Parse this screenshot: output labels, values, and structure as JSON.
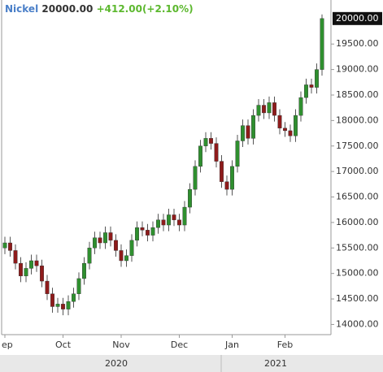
{
  "chart_data": {
    "type": "candlestick",
    "symbol": "Nickel",
    "last": "20000.00",
    "change": "+412.00(+2.10%)",
    "last_price_tag": {
      "value": 20000,
      "label": "20000.00"
    },
    "up_color": "#2f8f2f",
    "down_color": "#8e1b1b",
    "wick_color": "#555555",
    "ylim": [
      13800,
      20300
    ],
    "yticks": [
      {
        "value": 14000,
        "label": "14000.00"
      },
      {
        "value": 14500,
        "label": "14500.00"
      },
      {
        "value": 15000,
        "label": "15000.00"
      },
      {
        "value": 15500,
        "label": "15500.00"
      },
      {
        "value": 16000,
        "label": "16000.00"
      },
      {
        "value": 16500,
        "label": "16500.00"
      },
      {
        "value": 17000,
        "label": "17000.00"
      },
      {
        "value": 17500,
        "label": "17500.00"
      },
      {
        "value": 18000,
        "label": "18000.00"
      },
      {
        "value": 18500,
        "label": "18500.00"
      },
      {
        "value": 19000,
        "label": "19000.00"
      },
      {
        "value": 19500,
        "label": "19500.00"
      }
    ],
    "categories": [
      "ep",
      null,
      null,
      null,
      null,
      null,
      null,
      null,
      null,
      null,
      null,
      "Oct",
      null,
      null,
      null,
      null,
      null,
      null,
      null,
      null,
      null,
      null,
      "Nov",
      null,
      null,
      null,
      null,
      null,
      null,
      null,
      null,
      null,
      null,
      "Dec",
      null,
      null,
      null,
      null,
      null,
      null,
      null,
      null,
      null,
      "Jan",
      null,
      null,
      null,
      null,
      null,
      null,
      null,
      null,
      null,
      "Feb",
      null,
      null,
      null,
      null,
      null,
      null,
      null
    ],
    "years": [
      "2020",
      "2021"
    ],
    "open": [
      15500,
      15600,
      15450,
      15200,
      14950,
      15100,
      15250,
      15150,
      14850,
      14600,
      14350,
      14400,
      14300,
      14450,
      14600,
      14900,
      15200,
      15500,
      15700,
      15600,
      15800,
      15650,
      15450,
      15250,
      15350,
      15650,
      15900,
      15850,
      15750,
      15900,
      16050,
      15950,
      16150,
      16050,
      15950,
      16300,
      16650,
      17100,
      17500,
      17650,
      17550,
      17200,
      16800,
      16650,
      17100,
      17600,
      17900,
      17650,
      18100,
      18300,
      18150,
      18350,
      18100,
      17850,
      17800,
      17700,
      18100,
      18450,
      18700,
      18650,
      19000
    ],
    "high": [
      15720,
      15720,
      15570,
      15320,
      15220,
      15370,
      15370,
      15270,
      14970,
      14720,
      14520,
      14520,
      14570,
      14720,
      15020,
      15320,
      15620,
      15820,
      15820,
      15920,
      15920,
      15770,
      15570,
      15470,
      15770,
      16020,
      16020,
      15970,
      16020,
      16170,
      16170,
      16270,
      16270,
      16170,
      16420,
      16770,
      17220,
      17620,
      17770,
      17770,
      17670,
      17320,
      16920,
      17220,
      17720,
      18020,
      18020,
      18220,
      18420,
      18420,
      18470,
      18470,
      18220,
      17970,
      17920,
      18220,
      18570,
      18820,
      18820,
      19120,
      20080
    ],
    "low": [
      15380,
      15330,
      15080,
      14830,
      14830,
      14980,
      15030,
      14730,
      14480,
      14230,
      14230,
      14180,
      14180,
      14330,
      14480,
      14780,
      15080,
      15380,
      15480,
      15480,
      15530,
      15330,
      15130,
      15130,
      15230,
      15530,
      15730,
      15630,
      15630,
      15780,
      15830,
      15830,
      15930,
      15830,
      15830,
      16180,
      16530,
      16980,
      17380,
      17430,
      17080,
      16680,
      16530,
      16530,
      16980,
      17480,
      17530,
      17530,
      17980,
      18030,
      18030,
      17980,
      17730,
      17680,
      17580,
      17580,
      17980,
      18330,
      18530,
      18530,
      18880
    ],
    "close": [
      15600,
      15450,
      15200,
      14950,
      15100,
      15250,
      15150,
      14850,
      14600,
      14350,
      14400,
      14300,
      14450,
      14600,
      14900,
      15200,
      15500,
      15700,
      15600,
      15800,
      15650,
      15450,
      15250,
      15350,
      15650,
      15900,
      15850,
      15750,
      15900,
      16050,
      15950,
      16150,
      16050,
      15950,
      16300,
      16650,
      17100,
      17500,
      17650,
      17550,
      17200,
      16800,
      16650,
      17100,
      17600,
      17900,
      17650,
      18100,
      18300,
      18150,
      18350,
      18100,
      17850,
      17800,
      17700,
      18100,
      18450,
      18700,
      18650,
      19000,
      20000
    ]
  }
}
